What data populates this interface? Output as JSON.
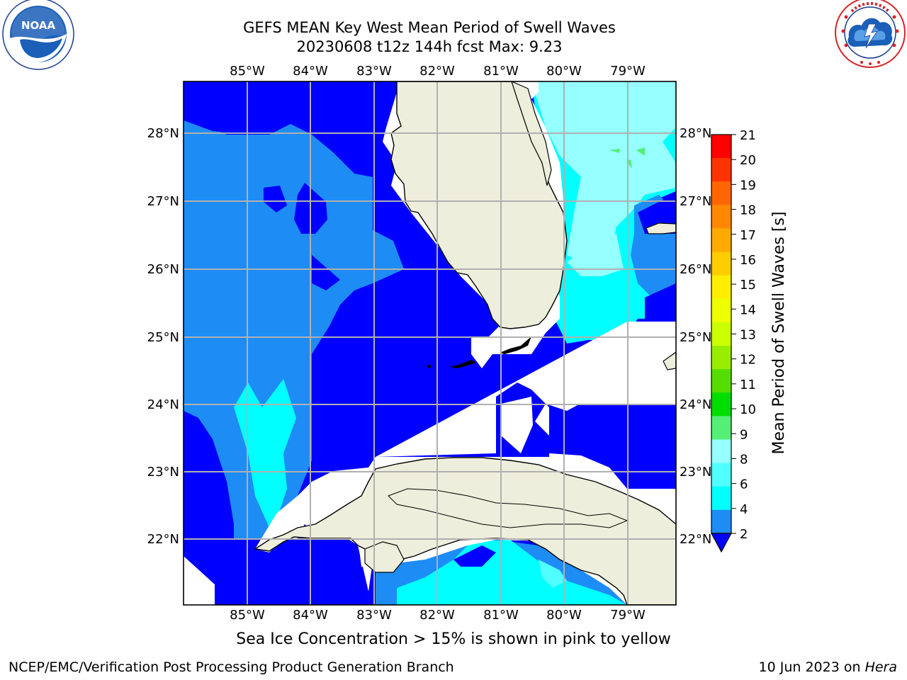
{
  "header": {
    "title_line1": "GEFS MEAN Key West Mean Period of Swell Waves",
    "title_line2": "20230608 t12z 144h fcst   Max: 9.23"
  },
  "logos": {
    "left": {
      "name": "noaa-logo",
      "text": "NOAA",
      "ring_text": "NATIONAL OCEANIC AND ATMOSPHERIC ADMINISTRATION · U.S. DEPARTMENT OF COMMERCE"
    },
    "right": {
      "name": "nws-logo",
      "ring_text": "NATIONAL WEATHER SERVICE"
    }
  },
  "map": {
    "lon_labels": [
      "85°W",
      "84°W",
      "83°W",
      "82°W",
      "81°W",
      "80°W",
      "79°W"
    ],
    "lat_labels": [
      "28°N",
      "27°N",
      "26°N",
      "25°N",
      "24°N",
      "23°N",
      "22°N"
    ],
    "colors": {
      "land": "#eeeedc",
      "no_data": "#ffffff",
      "swell_2_4": "#0000ff",
      "swell_4_6": "#1e8cf5",
      "swell_6_8": "#00ffff",
      "swell_8_9": "#96ffff",
      "swell_9_10": "#55ee77",
      "grid": "#b0b0b0"
    }
  },
  "colorbar": {
    "label": "Mean Period of Swell Waves [s]",
    "ticks": [
      "21",
      "20",
      "19",
      "18",
      "17",
      "16",
      "15",
      "14",
      "13",
      "12",
      "11",
      "10",
      "9",
      "8",
      "6",
      "4",
      "2"
    ],
    "colors": [
      "#ff0000",
      "#ff3300",
      "#ff6600",
      "#ff8800",
      "#ffaa00",
      "#ffcc00",
      "#ffee00",
      "#eeff00",
      "#ccff00",
      "#99ee00",
      "#55dd00",
      "#00dd00",
      "#55ee77",
      "#96ffff",
      "#50ffff",
      "#00ffff",
      "#1e8cf5",
      "#0000ff"
    ]
  },
  "caption": "Sea Ice Concentration > 15% is shown in pink to yellow",
  "footer": {
    "left": "NCEP/EMC/Verification Post Processing Product Generation Branch",
    "right_prefix": "10 Jun 2023 on ",
    "right_host": "Hera"
  }
}
